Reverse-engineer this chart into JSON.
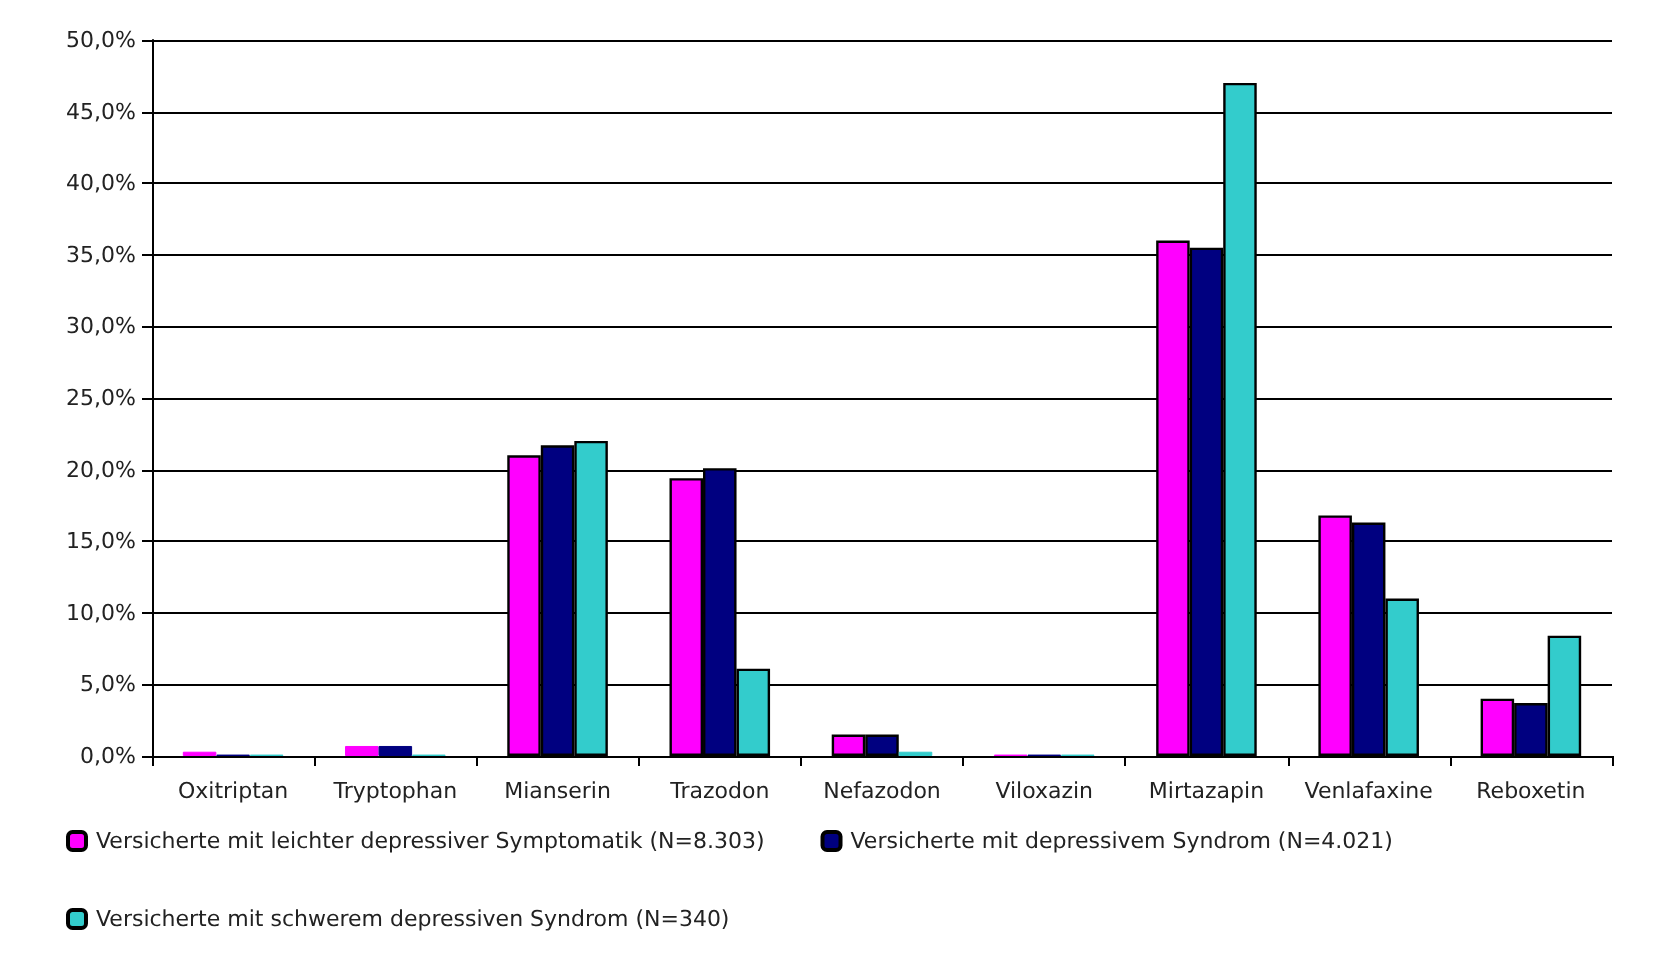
{
  "chart_data": {
    "type": "bar",
    "categories": [
      "Oxitriptan",
      "Tryptophan",
      "Mianserin",
      "Trazodon",
      "Nefazodon",
      "Viloxazin",
      "Mirtazapin",
      "Venlafaxine",
      "Reboxetin"
    ],
    "series": [
      {
        "name": "Versicherte mit leichter depressiver Symptomatik (N=8.303)",
        "color": "#ff00ff",
        "values": [
          0.3,
          0.7,
          21.0,
          19.4,
          1.5,
          0.1,
          36.0,
          16.8,
          4.0
        ]
      },
      {
        "name": "Versicherte mit depressivem Syndrom (N=4.021)",
        "color": "#000080",
        "values": [
          0.1,
          0.7,
          21.7,
          20.1,
          1.5,
          0.1,
          35.5,
          16.3,
          3.7
        ]
      },
      {
        "name": "Versicherte mit schwerem depressiven Syndrom (N=340)",
        "color": "#33cccc",
        "values": [
          0.1,
          0.1,
          22.0,
          6.1,
          0.3,
          0.1,
          47.0,
          11.0,
          8.4
        ]
      }
    ],
    "ylim": [
      0,
      50
    ],
    "yticks": [
      {
        "value": 0,
        "label": "0,0%"
      },
      {
        "value": 5,
        "label": "5,0%"
      },
      {
        "value": 10,
        "label": "10,0%"
      },
      {
        "value": 15,
        "label": "15,0%"
      },
      {
        "value": 20,
        "label": "20,0%"
      },
      {
        "value": 25,
        "label": "25,0%"
      },
      {
        "value": 30,
        "label": "30,0%"
      },
      {
        "value": 35,
        "label": "35,0%"
      },
      {
        "value": 40,
        "label": "40,0%"
      },
      {
        "value": 45,
        "label": "45,0%"
      },
      {
        "value": 50,
        "label": "50,0%"
      }
    ],
    "grid": "y",
    "legend": "bottom"
  }
}
